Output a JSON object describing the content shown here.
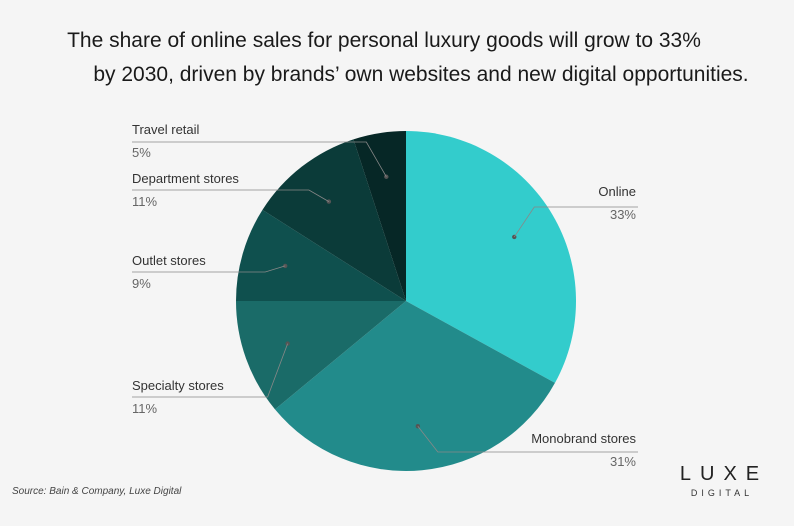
{
  "chart_data": {
    "type": "pie",
    "title_lines": [
      "The share of online sales for personal luxury goods will grow to 33%",
      "by 2030, driven by brands’ own websites and new digital opportunities."
    ],
    "slices": [
      {
        "label": "Online",
        "value": 33,
        "value_text": "33%",
        "color": "#33cccc"
      },
      {
        "label": "Monobrand stores",
        "value": 31,
        "value_text": "31%",
        "color": "#228b8b"
      },
      {
        "label": "Specialty stores",
        "value": 11,
        "value_text": "11%",
        "color": "#1a6b68"
      },
      {
        "label": "Outlet stores",
        "value": 9,
        "value_text": "9%",
        "color": "#0f504e"
      },
      {
        "label": "Department stores",
        "value": 11,
        "value_text": "11%",
        "color": "#0b3b39"
      },
      {
        "label": "Travel retail",
        "value": 5,
        "value_text": "5%",
        "color": "#062726"
      }
    ],
    "start_angle_deg": 0,
    "direction": "clockwise"
  },
  "source_text": "Source: Bain & Company, Luxe Digital",
  "brand": {
    "name": "LUXE",
    "sub": "DIGITAL"
  }
}
